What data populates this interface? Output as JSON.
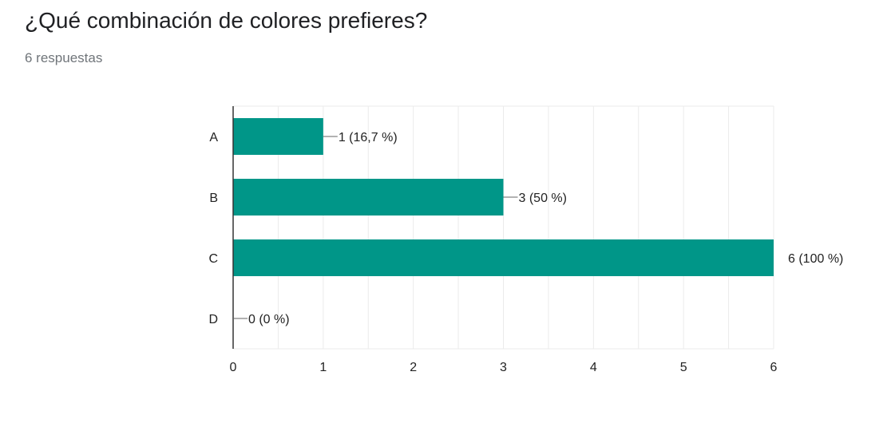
{
  "question": {
    "title": "¿Qué combinación de colores prefieres?",
    "responses_label": "6 respuestas"
  },
  "colors": {
    "bar": "#009688",
    "grid": "#ebebeb",
    "axis": "#333333",
    "text": "#222222"
  },
  "chart_data": {
    "type": "bar",
    "orientation": "horizontal",
    "categories": [
      "A",
      "B",
      "C",
      "D"
    ],
    "values": [
      1,
      3,
      6,
      0
    ],
    "data_labels": [
      "1 (16,7 %)",
      "3 (50 %)",
      "6 (100 %)",
      "0 (0 %)"
    ],
    "xlim": [
      0,
      6
    ],
    "x_ticks": [
      "0",
      "1",
      "2",
      "3",
      "4",
      "5",
      "6"
    ],
    "grid": true,
    "legend": "none"
  }
}
